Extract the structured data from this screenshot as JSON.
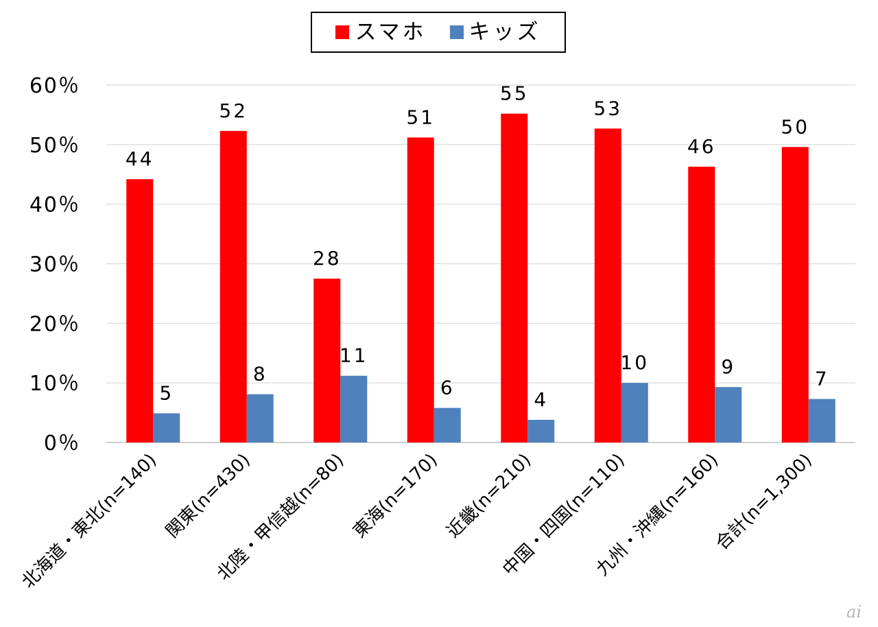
{
  "chart_data": {
    "type": "bar",
    "categories": [
      "北海道・東北(n=140)",
      "関東(n=430)",
      "北陸・甲信越(n=80)",
      "東海(n=170)",
      "近畿(n=210)",
      "中国・四国(n=110)",
      "九州・沖縄(n=160)",
      "合計(n=1,300)"
    ],
    "series": [
      {
        "name": "スマホ",
        "color": "#ff0000",
        "values": [
          44,
          52,
          28,
          51,
          55,
          53,
          46,
          50
        ],
        "plot_values": [
          44.2,
          52.3,
          27.5,
          51.2,
          55.2,
          52.7,
          46.3,
          49.6
        ]
      },
      {
        "name": "キッズ",
        "color": "#4f81bd",
        "values": [
          5,
          8,
          11,
          6,
          4,
          10,
          9,
          7
        ],
        "plot_values": [
          4.9,
          8.1,
          11.2,
          5.8,
          3.8,
          10.0,
          9.3,
          7.3
        ]
      }
    ],
    "ylim": [
      0,
      60
    ],
    "yticks": [
      0,
      10,
      20,
      30,
      40,
      50,
      60
    ],
    "ytick_labels": [
      "0％",
      "10％",
      "20％",
      "30％",
      "40％",
      "50％",
      "60％"
    ],
    "grid": true,
    "legend_position": "top-center",
    "title": "",
    "xlabel": "",
    "ylabel": ""
  },
  "watermark": "ai"
}
